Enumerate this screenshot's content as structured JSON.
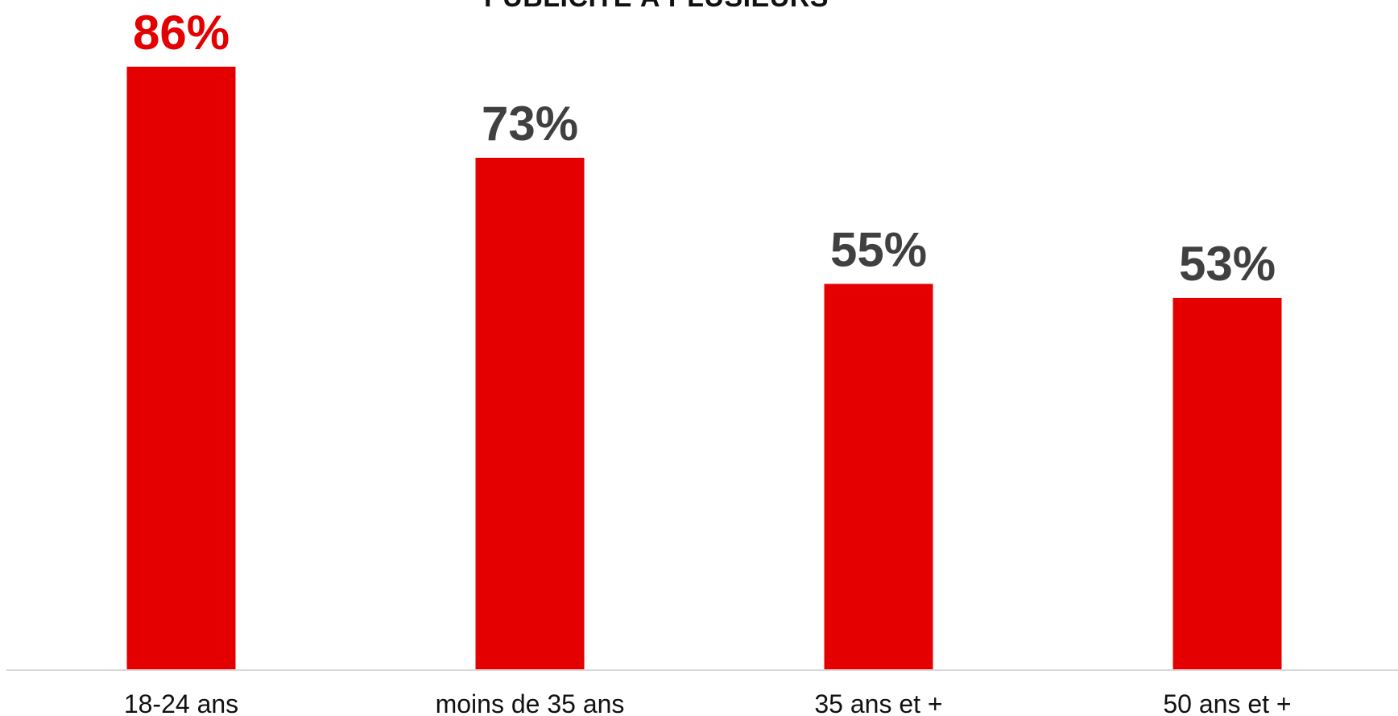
{
  "chart_data": {
    "type": "bar",
    "title": "PUBLICITÉ À PLUSIEURS",
    "categories": [
      "18-24 ans",
      "moins de 35 ans",
      "35 ans et +",
      "50 ans et +"
    ],
    "values": [
      86,
      73,
      55,
      53
    ],
    "value_labels": [
      "86%",
      "73%",
      "55%",
      "53%"
    ],
    "ylim": [
      0,
      100
    ],
    "grid": false,
    "legend": "none",
    "colors": {
      "bar": "#e40000",
      "highlight_label": "#e40000",
      "label": "#404040",
      "axis": "#d9d9d9",
      "text": "#111111"
    },
    "highlight_index": 0
  }
}
